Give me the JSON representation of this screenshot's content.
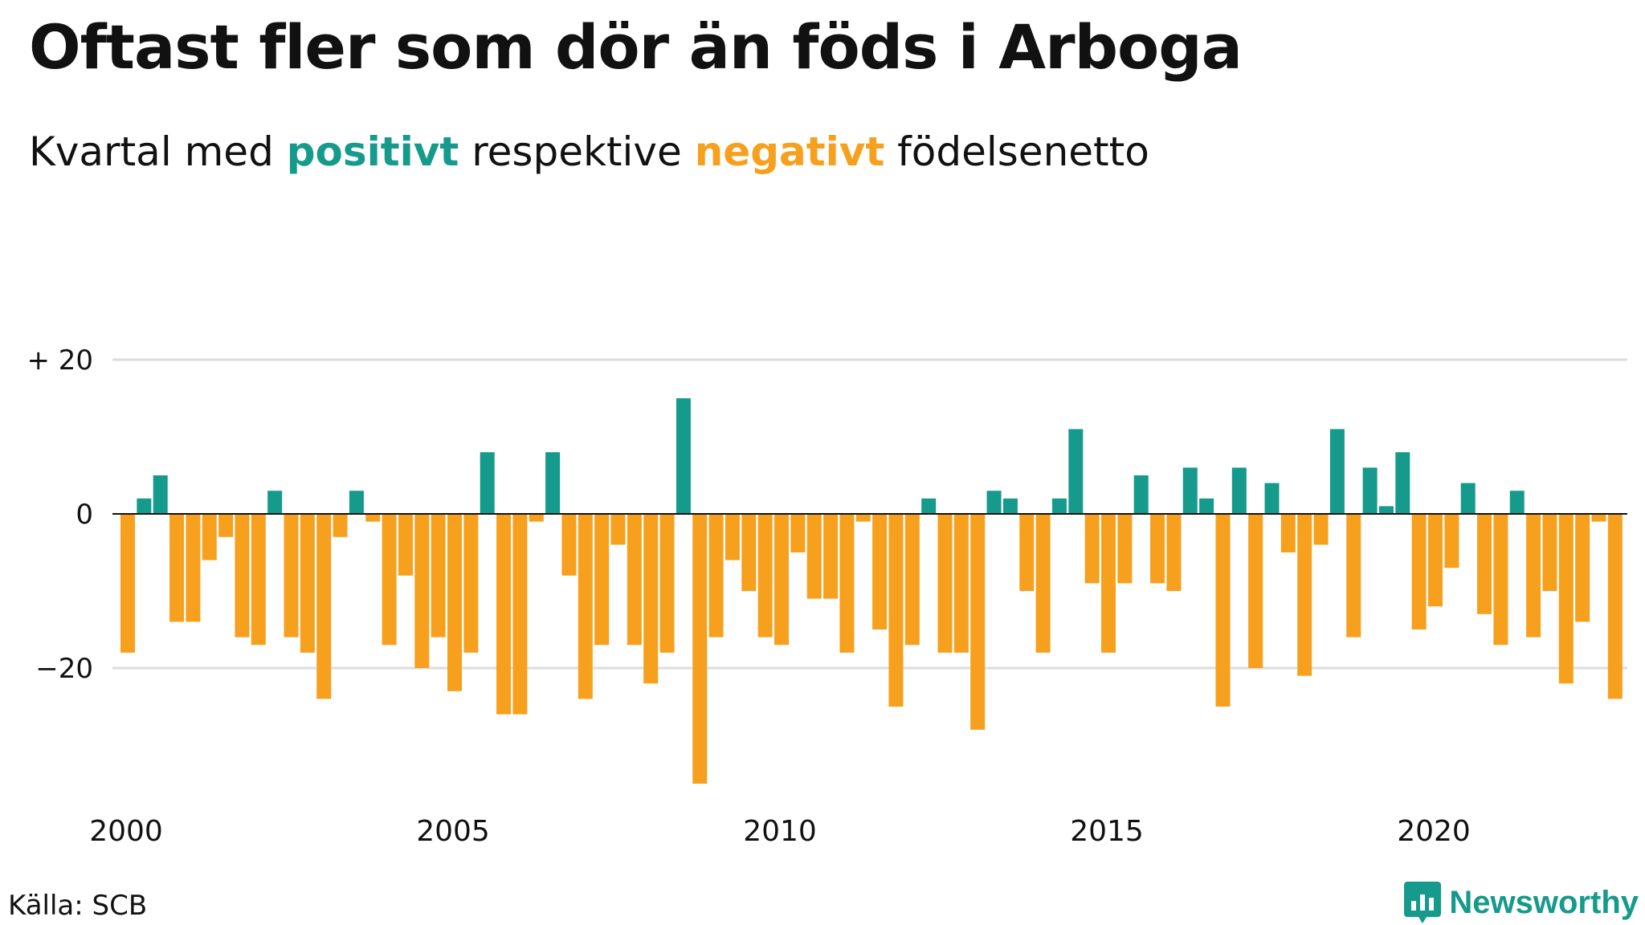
{
  "title": "Oftast fler som dör än föds i Arboga",
  "subtitle": {
    "prefix": "Kvartal med",
    "positive_word": "positivt",
    "middle": "respektive",
    "negative_word": "negativt",
    "suffix": "födelsenetto"
  },
  "source": "Källa: SCB",
  "brand": {
    "name": "Newsworthy",
    "icon": "newsworthy-logo-icon"
  },
  "colors": {
    "positive": "#159a8b",
    "negative": "#f6a01e",
    "grid": "#dddddd"
  },
  "chart_data": {
    "type": "bar",
    "xlabel": "",
    "ylabel": "",
    "ylim": [
      -35,
      20
    ],
    "y_ticks": [
      {
        "value": 20,
        "label": "+ 20"
      },
      {
        "value": 0,
        "label": "0"
      },
      {
        "value": -20,
        "label": "−20"
      }
    ],
    "x_ticks": [
      "2000",
      "2005",
      "2010",
      "2015",
      "2020"
    ],
    "grid": true,
    "start": "2000 Q1",
    "frequency": "quarter",
    "values": [
      -18,
      2,
      5,
      -14,
      -14,
      -6,
      -3,
      -16,
      -17,
      3,
      -16,
      -18,
      -24,
      -3,
      3,
      -1,
      -17,
      -8,
      -20,
      -16,
      -23,
      -18,
      8,
      -26,
      -26,
      -1,
      8,
      -8,
      -24,
      -17,
      -4,
      -17,
      -22,
      -18,
      15,
      -35,
      -16,
      -6,
      -10,
      -16,
      -17,
      -5,
      -11,
      -11,
      -18,
      -1,
      -15,
      -25,
      -17,
      2,
      -18,
      -18,
      -28,
      3,
      2,
      -10,
      -18,
      2,
      11,
      -9,
      -18,
      -9,
      5,
      -9,
      -10,
      6,
      2,
      -25,
      6,
      -20,
      4,
      -5,
      -21,
      -4,
      11,
      -16,
      6,
      1,
      8,
      -15,
      -12,
      -7,
      4,
      -13,
      -17,
      3,
      -16,
      -10,
      -22,
      -14,
      -1,
      -24
    ]
  }
}
